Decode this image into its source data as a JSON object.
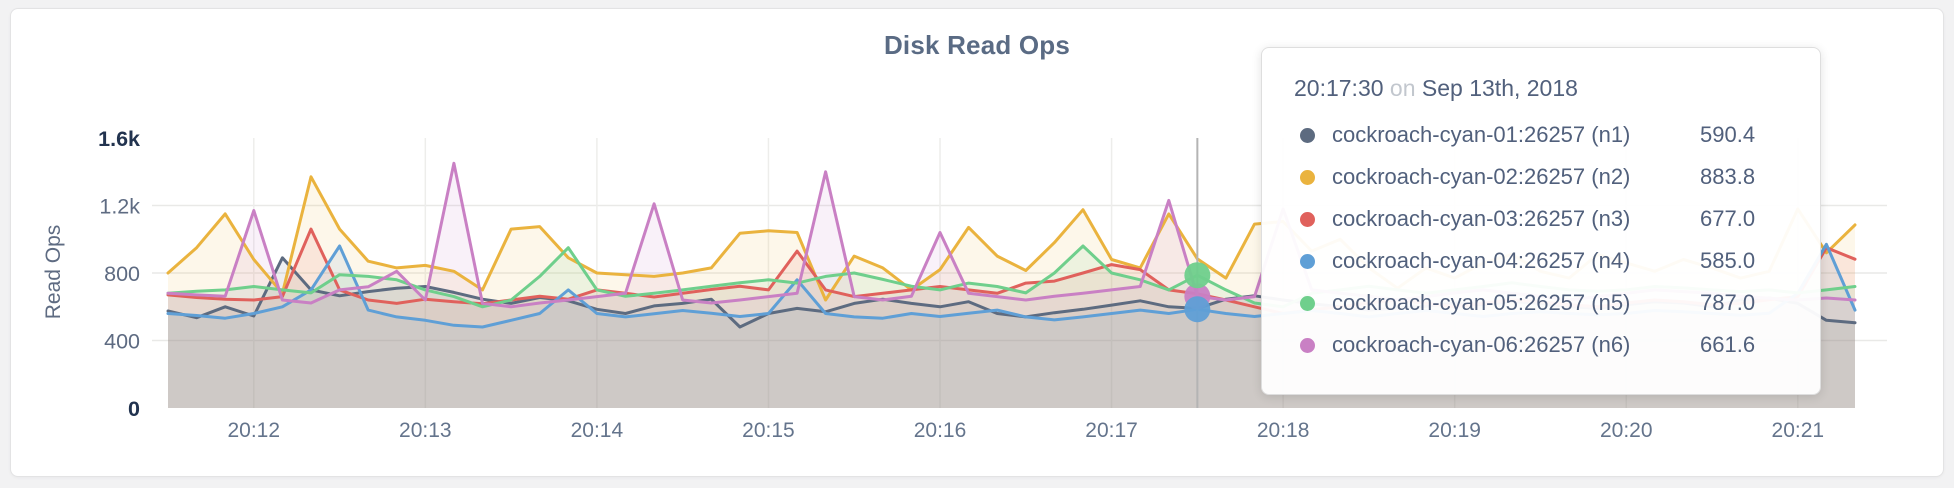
{
  "page": {
    "title": "Disk Read Ops"
  },
  "chart_data": {
    "type": "line",
    "title": "Disk Read Ops",
    "xlabel": "",
    "ylabel": "Read Ops",
    "ylim": [
      0,
      1600
    ],
    "grid": true,
    "legend_position": "none",
    "x_start": "20:11:30",
    "x_interval_seconds": 10,
    "x_ticks": [
      "20:12",
      "20:13",
      "20:14",
      "20:15",
      "20:16",
      "20:17",
      "20:18",
      "20:19",
      "20:20",
      "20:21"
    ],
    "y_ticks": [
      {
        "label": "0",
        "value": 0,
        "emphasis": true
      },
      {
        "label": "400",
        "value": 400,
        "emphasis": false
      },
      {
        "label": "800",
        "value": 800,
        "emphasis": false
      },
      {
        "label": "1.2k",
        "value": 1200,
        "emphasis": false
      },
      {
        "label": "1.6k",
        "value": 1600,
        "emphasis": true
      }
    ],
    "fill_opacity": 0.11,
    "grid_color": "#e9e9e7",
    "crosshair_color": "#b4b4b4",
    "hover": {
      "index": 36,
      "time": "20:17:30",
      "dot_series": [
        5,
        4,
        3
      ]
    },
    "series": [
      {
        "name": "cockroach-cyan-01:26257 (n1)",
        "short": "n1",
        "color": "#5d6b80",
        "values": [
          575,
          535,
          600,
          545,
          890,
          700,
          665,
          690,
          710,
          720,
          685,
          645,
          620,
          655,
          635,
          585,
          560,
          605,
          620,
          645,
          480,
          560,
          590,
          570,
          620,
          645,
          620,
          600,
          630,
          560,
          540,
          565,
          585,
          610,
          635,
          600,
          590.4,
          645,
          665,
          640,
          618,
          600,
          580,
          592,
          603,
          622,
          612,
          632,
          620,
          601,
          590,
          612,
          630,
          622,
          600,
          641,
          652,
          620,
          520,
          505
        ]
      },
      {
        "name": "cockroach-cyan-02:26257 (n2)",
        "short": "n2",
        "color": "#eab33e",
        "values": [
          800,
          950,
          1150,
          880,
          680,
          1370,
          1060,
          870,
          830,
          845,
          810,
          700,
          1060,
          1075,
          890,
          800,
          790,
          780,
          800,
          830,
          1035,
          1050,
          1040,
          640,
          900,
          830,
          700,
          820,
          1070,
          900,
          815,
          980,
          1175,
          880,
          830,
          1150,
          883.8,
          770,
          1090,
          1105,
          930,
          1000,
          830,
          710,
          830,
          770,
          860,
          910,
          810,
          770,
          910,
          860,
          810,
          880,
          830,
          770,
          810,
          1180,
          920,
          1085
        ]
      },
      {
        "name": "cockroach-cyan-03:26257 (n3)",
        "short": "n3",
        "color": "#e0615c",
        "values": [
          670,
          655,
          645,
          640,
          660,
          1060,
          700,
          640,
          620,
          645,
          630,
          618,
          640,
          662,
          645,
          700,
          680,
          658,
          680,
          702,
          722,
          700,
          930,
          700,
          660,
          680,
          700,
          720,
          700,
          680,
          740,
          752,
          800,
          850,
          820,
          700,
          677,
          640,
          600,
          560,
          582,
          600,
          622,
          641,
          620,
          600,
          620,
          641,
          630,
          612,
          600,
          622,
          640,
          630,
          612,
          620,
          642,
          660,
          950,
          882
        ]
      },
      {
        "name": "cockroach-cyan-04:26257 (n4)",
        "short": "n4",
        "color": "#5f9fd6",
        "values": [
          560,
          548,
          532,
          560,
          600,
          700,
          960,
          580,
          540,
          520,
          490,
          480,
          520,
          560,
          700,
          560,
          540,
          558,
          578,
          562,
          542,
          560,
          760,
          560,
          540,
          532,
          560,
          542,
          562,
          580,
          540,
          522,
          540,
          560,
          580,
          560,
          585,
          560,
          542,
          560,
          578,
          560,
          540,
          560,
          578,
          560,
          542,
          560,
          570,
          560,
          552,
          560,
          578,
          570,
          560,
          550,
          562,
          680,
          970,
          580
        ]
      },
      {
        "name": "cockroach-cyan-05:26257 (n5)",
        "short": "n5",
        "color": "#6fcf8c",
        "values": [
          680,
          692,
          700,
          720,
          700,
          682,
          790,
          780,
          760,
          700,
          660,
          600,
          640,
          780,
          950,
          700,
          662,
          680,
          700,
          722,
          742,
          760,
          740,
          780,
          800,
          762,
          722,
          700,
          740,
          720,
          682,
          800,
          960,
          800,
          760,
          700,
          787,
          700,
          622,
          600,
          680,
          700,
          722,
          700,
          680,
          700,
          720,
          742,
          720,
          700,
          692,
          700,
          720,
          712,
          700,
          690,
          700,
          682,
          700,
          720
        ]
      },
      {
        "name": "cockroach-cyan-06:26257 (n6)",
        "short": "n6",
        "color": "#c980c4",
        "values": [
          680,
          670,
          662,
          1170,
          640,
          622,
          700,
          718,
          810,
          640,
          1450,
          620,
          600,
          622,
          640,
          660,
          680,
          1210,
          640,
          622,
          640,
          660,
          680,
          1400,
          660,
          640,
          662,
          1040,
          680,
          660,
          640,
          662,
          680,
          700,
          720,
          1230,
          661.6,
          640,
          660,
          1180,
          700,
          680,
          662,
          640,
          660,
          682,
          700,
          680,
          662,
          640,
          660,
          680,
          700,
          690,
          680,
          662,
          650,
          640,
          652,
          640
        ]
      }
    ]
  },
  "tooltip": {
    "time": "20:17:30",
    "connector": "on",
    "date": "Sep 13th, 2018",
    "rows": [
      {
        "label": "cockroach-cyan-01:26257 (n1)",
        "value": "590.4",
        "color": "#5d6b80"
      },
      {
        "label": "cockroach-cyan-02:26257 (n2)",
        "value": "883.8",
        "color": "#eab33e"
      },
      {
        "label": "cockroach-cyan-03:26257 (n3)",
        "value": "677.0",
        "color": "#e0615c"
      },
      {
        "label": "cockroach-cyan-04:26257 (n4)",
        "value": "585.0",
        "color": "#5f9fd6"
      },
      {
        "label": "cockroach-cyan-05:26257 (n5)",
        "value": "787.0",
        "color": "#6fcf8c"
      },
      {
        "label": "cockroach-cyan-06:26257 (n6)",
        "value": "661.6",
        "color": "#c980c4"
      }
    ]
  }
}
